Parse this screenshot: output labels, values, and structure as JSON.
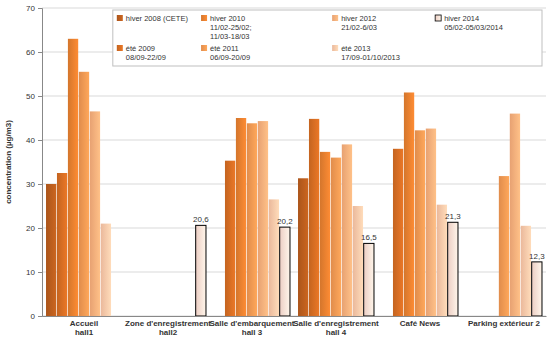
{
  "chart_data": {
    "type": "bar",
    "y_label": "concentration (µg/m3)",
    "categories": [
      "Accueil\nhall1",
      "Zone d'enregistrement\nhall2",
      "Salle d'embarquement\nhall 3",
      "Salle d'enregistrement\nhall 4",
      "Café News",
      "Parking extérieur 2"
    ],
    "series": [
      {
        "name": "hiver 2008 (CETE)",
        "color": "#b45a1c",
        "values": [
          30,
          null,
          null,
          31.3,
          null,
          null
        ]
      },
      {
        "name": "été 2009\n08/09-22/09",
        "color": "#cf6a22",
        "values": [
          32.5,
          null,
          35.3,
          44.8,
          38,
          null
        ]
      },
      {
        "name": "hiver 2010\n11/02-25/02;\n11/03-18/03",
        "color": "#e07c2e",
        "values": [
          63,
          null,
          45,
          37.3,
          50.8,
          null
        ]
      },
      {
        "name": "été 2011\n06/09-20/09",
        "color": "#ec9450",
        "values": [
          55.5,
          null,
          43.8,
          36,
          42.2,
          31.8
        ]
      },
      {
        "name": "hiver 2012\n21/02-6/03",
        "color": "#f4aa78",
        "values": [
          46.5,
          null,
          44.3,
          39,
          42.6,
          46
        ]
      },
      {
        "name": "été 2013\n17/09-01/10/2013",
        "color": "#f7c2a4",
        "values": [
          21,
          null,
          26.5,
          25,
          25.3,
          20.5
        ]
      },
      {
        "name": "hiver 2014\n05/02-05/03/2014",
        "color": "#f9d9cf",
        "values": [
          null,
          20.6,
          20.2,
          16.5,
          21.3,
          12.3
        ],
        "value_labels": [
          null,
          "20,6",
          "20,2",
          "16,5",
          "21,3",
          "12,3"
        ],
        "data_labels": true
      }
    ],
    "ylim": [
      0,
      70
    ],
    "yticks": [
      0,
      10,
      20,
      30,
      40,
      50,
      60,
      70
    ],
    "grid": true,
    "legend": "top-right"
  }
}
